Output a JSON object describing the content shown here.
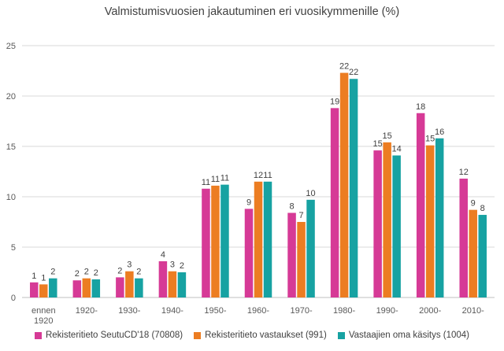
{
  "chart_data": {
    "type": "bar",
    "title": "Valmistumisvuosien jakautuminen eri vuosikymmenille (%)",
    "xlabel": "",
    "ylabel": "",
    "ylim": [
      0,
      25
    ],
    "yticks": [
      0,
      5,
      10,
      15,
      20,
      25
    ],
    "grid": true,
    "legend_position": "bottom",
    "categories": [
      "ennen 1920",
      "1920-",
      "1930-",
      "1940-",
      "1950-",
      "1960-",
      "1970-",
      "1980-",
      "1990-",
      "2000-",
      "2010-"
    ],
    "series": [
      {
        "name": "Rekisteritieto SeutuCD'18 (70808)",
        "color": "#d63a96",
        "values": [
          1.5,
          1.7,
          2.0,
          3.6,
          10.8,
          8.8,
          8.4,
          18.8,
          14.6,
          18.3,
          11.8
        ],
        "labels": [
          "1",
          "2",
          "2",
          "4",
          "11",
          "9",
          "8",
          "19",
          "15",
          "18",
          "12"
        ]
      },
      {
        "name": "Rekisteritieto vastaukset (991)",
        "color": "#ec7d22",
        "values": [
          1.3,
          1.9,
          2.6,
          2.6,
          11.1,
          11.5,
          7.5,
          22.3,
          15.4,
          15.1,
          8.7
        ],
        "labels": [
          "1",
          "2",
          "3",
          "3",
          "11",
          "12",
          "7",
          "22",
          "15",
          "15",
          "9"
        ]
      },
      {
        "name": "Vastaajien oma käsitys (1004)",
        "color": "#17a2a2",
        "values": [
          1.9,
          1.8,
          1.9,
          2.5,
          11.2,
          11.5,
          9.7,
          21.7,
          14.1,
          15.8,
          8.2
        ],
        "labels": [
          "2",
          "2",
          "2",
          "2",
          "11",
          "11",
          "10",
          "22",
          "14",
          "16",
          "8"
        ]
      }
    ]
  }
}
